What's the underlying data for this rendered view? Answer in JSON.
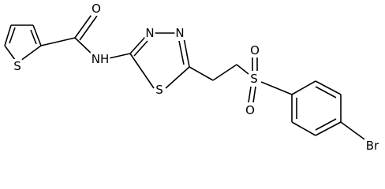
{
  "atoms": [
    {
      "label": "O"
    },
    {
      "label": "NH"
    },
    {
      "label": "N"
    },
    {
      "label": "N"
    },
    {
      "label": "S"
    },
    {
      "label": "S"
    },
    {
      "label": "S"
    },
    {
      "label": "O"
    },
    {
      "label": "O"
    },
    {
      "label": "Br"
    }
  ]
}
